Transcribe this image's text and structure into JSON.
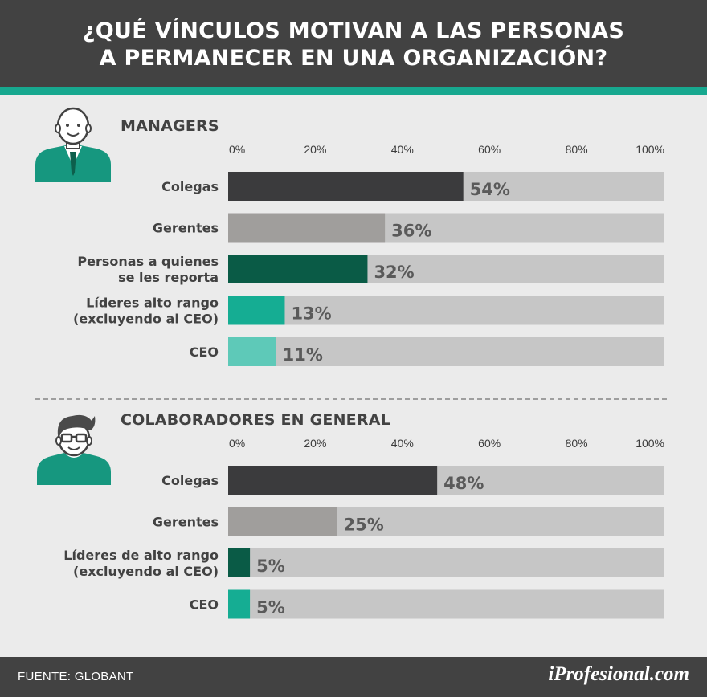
{
  "header": {
    "title_line1": "¿QUÉ VÍNCULOS MOTIVAN A LAS PERSONAS",
    "title_line2": "A PERMANECER EN UNA ORGANIZACIÓN?"
  },
  "colors": {
    "header_bg": "#424242",
    "accent_stripe": "#17a88f",
    "page_bg": "#ebebeb",
    "track": "#c6c6c6"
  },
  "chart_data": [
    {
      "type": "bar",
      "orientation": "horizontal",
      "title": "MANAGERS",
      "icon": "manager-avatar-icon",
      "xlim": [
        0,
        100
      ],
      "ticks": [
        "0%",
        "20%",
        "40%",
        "60%",
        "80%",
        "100%"
      ],
      "grid": false,
      "categories": [
        [
          "Colegas"
        ],
        [
          "Gerentes"
        ],
        [
          "Personas a quienes",
          "se les reporta"
        ],
        [
          "Líderes alto rango",
          "(excluyendo al CEO)"
        ],
        [
          "CEO"
        ]
      ],
      "values": [
        54,
        36,
        32,
        13,
        11
      ],
      "labels": [
        "54%",
        "36%",
        "32%",
        "13%",
        "11%"
      ],
      "bar_colors": [
        "#3b3b3d",
        "#a09e9c",
        "#0a5b46",
        "#15ad93",
        "#5ec9b8"
      ]
    },
    {
      "type": "bar",
      "orientation": "horizontal",
      "title": "COLABORADORES EN GENERAL",
      "icon": "collaborator-avatar-icon",
      "xlim": [
        0,
        100
      ],
      "ticks": [
        "0%",
        "20%",
        "40%",
        "60%",
        "80%",
        "100%"
      ],
      "grid": false,
      "categories": [
        [
          "Colegas"
        ],
        [
          "Gerentes"
        ],
        [
          "Líderes de alto rango",
          "(excluyendo al CEO)"
        ],
        [
          "CEO"
        ]
      ],
      "values": [
        48,
        25,
        5,
        5
      ],
      "labels": [
        "48%",
        "25%",
        "5%",
        "5%"
      ],
      "bar_colors": [
        "#3b3b3d",
        "#a09e9c",
        "#0a5b46",
        "#15ad93"
      ]
    }
  ],
  "footer": {
    "source": "FUENTE: GLOBANT",
    "logo": "iProfesional.com"
  }
}
